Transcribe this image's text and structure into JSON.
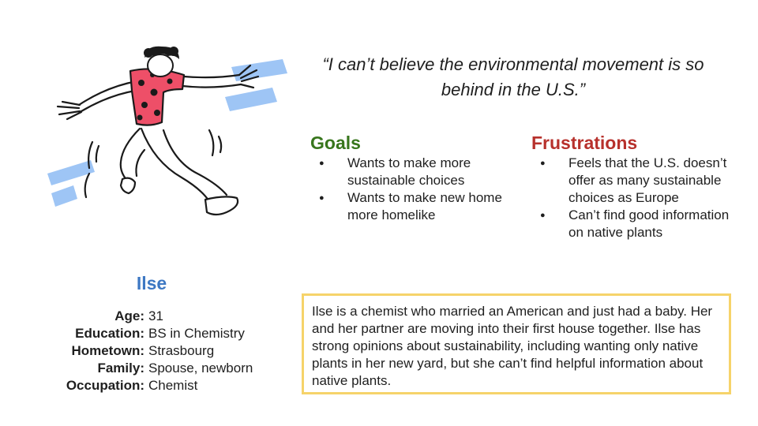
{
  "quote": "“I can’t believe the environmental movement is so behind in the U.S.”",
  "goals": {
    "heading": "Goals",
    "items": [
      "Wants to make more sustainable choices",
      "Wants to make new home more homelike"
    ]
  },
  "frustrations": {
    "heading": "Frustrations",
    "items": [
      "Feels that the U.S. doesn’t offer as many sustainable choices as Europe",
      "Can’t find good information on native plants"
    ]
  },
  "persona": {
    "name": "Ilse",
    "details": [
      {
        "label": "Age:",
        "value": "31"
      },
      {
        "label": "Education:",
        "value": "BS in Chemistry"
      },
      {
        "label": "Hometown:",
        "value": "Strasbourg"
      },
      {
        "label": "Family:",
        "value": "Spouse, newborn"
      },
      {
        "label": "Occupation:",
        "value": "Chemist"
      }
    ]
  },
  "bio": "Ilse is a chemist who married an American and just had a baby. Her and her partner are moving into their first house together. Ilse has strong opinions about sustainability, including wanting only native plants in her new yard, but she can’t find helpful information about native plants.",
  "colors": {
    "goals": "#38761d",
    "frustrations": "#b7312c",
    "name": "#3d78c3",
    "bio_border": "#f6d36a",
    "accent_blue": "#9ec5f5",
    "shirt_red": "#ee4f68"
  }
}
